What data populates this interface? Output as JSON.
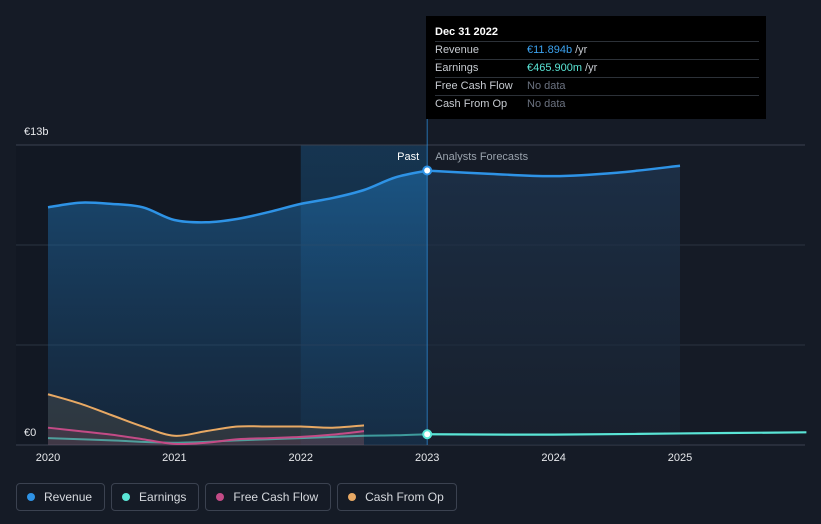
{
  "tooltip": {
    "date": "Dec 31 2022",
    "rows": [
      {
        "label": "Revenue",
        "value": "€11.894b",
        "unit": "/yr"
      },
      {
        "label": "Earnings",
        "value": "€465.900m",
        "unit": "/yr"
      },
      {
        "label": "Free Cash Flow",
        "value": "No data",
        "unit": ""
      },
      {
        "label": "Cash From Op",
        "value": "No data",
        "unit": ""
      }
    ]
  },
  "legend": {
    "items": [
      {
        "label": "Revenue",
        "color": "#2e93e6"
      },
      {
        "label": "Earnings",
        "color": "#5ae5d6"
      },
      {
        "label": "Free Cash Flow",
        "color": "#c34b86"
      },
      {
        "label": "Cash From Op",
        "color": "#e8a964"
      }
    ]
  },
  "chart_data": {
    "type": "line",
    "ylim": [
      0,
      13
    ],
    "y_unit": "€b",
    "y_tick_labels": [
      {
        "value": 13,
        "label": "€13b"
      },
      {
        "value": 0,
        "label": "€0"
      }
    ],
    "x_tick_labels": [
      "2020",
      "2021",
      "2022",
      "2023",
      "2024",
      "2025"
    ],
    "xlim": [
      2020,
      2026
    ],
    "divider_x": 2023,
    "past_label": "Past",
    "forecast_label": "Analysts Forecasts",
    "highlight_range": [
      2022,
      2023
    ],
    "colors": {
      "revenue": "#2e93e6",
      "earnings": "#5ae5d6",
      "fcf": "#c34b86",
      "cfo": "#e8a964",
      "highlight": "#1c6aa5"
    },
    "series": [
      {
        "name": "Revenue",
        "key": "revenue",
        "x": [
          2020,
          2020.25,
          2020.5,
          2020.75,
          2021,
          2021.25,
          2021.5,
          2021.75,
          2022,
          2022.25,
          2022.5,
          2022.75,
          2023
        ],
        "y": [
          10.3,
          10.5,
          10.45,
          10.3,
          9.75,
          9.65,
          9.8,
          10.1,
          10.45,
          10.7,
          11.05,
          11.6,
          11.89
        ]
      },
      {
        "name": "Revenue forecast",
        "key": "revenue",
        "x": [
          2023,
          2023.5,
          2024,
          2024.5,
          2025
        ],
        "y": [
          11.89,
          11.75,
          11.65,
          11.8,
          12.1
        ]
      },
      {
        "name": "Earnings",
        "key": "earnings",
        "x": [
          2020,
          2020.5,
          2021,
          2021.5,
          2022,
          2022.5,
          2022.75,
          2023
        ],
        "y": [
          0.3,
          0.2,
          0.1,
          0.2,
          0.3,
          0.4,
          0.42,
          0.466
        ]
      },
      {
        "name": "Earnings forecast",
        "key": "earnings",
        "x": [
          2023,
          2024,
          2025,
          2026
        ],
        "y": [
          0.466,
          0.45,
          0.5,
          0.55
        ]
      },
      {
        "name": "Free Cash Flow",
        "key": "fcf",
        "x": [
          2020,
          2020.25,
          2020.5,
          2020.75,
          2021,
          2021.25,
          2021.5,
          2021.75,
          2022,
          2022.25,
          2022.5
        ],
        "y": [
          0.75,
          0.6,
          0.45,
          0.25,
          0.05,
          0.1,
          0.25,
          0.3,
          0.35,
          0.45,
          0.6
        ]
      },
      {
        "name": "Cash From Op",
        "key": "cfo",
        "x": [
          2020,
          2020.25,
          2020.5,
          2020.75,
          2021,
          2021.25,
          2021.5,
          2021.75,
          2022,
          2022.25,
          2022.5
        ],
        "y": [
          2.2,
          1.8,
          1.3,
          0.8,
          0.4,
          0.6,
          0.8,
          0.8,
          0.8,
          0.75,
          0.85
        ]
      }
    ],
    "highlight_point": {
      "x": 2023,
      "revenue": 11.894,
      "earnings": 0.466
    }
  }
}
